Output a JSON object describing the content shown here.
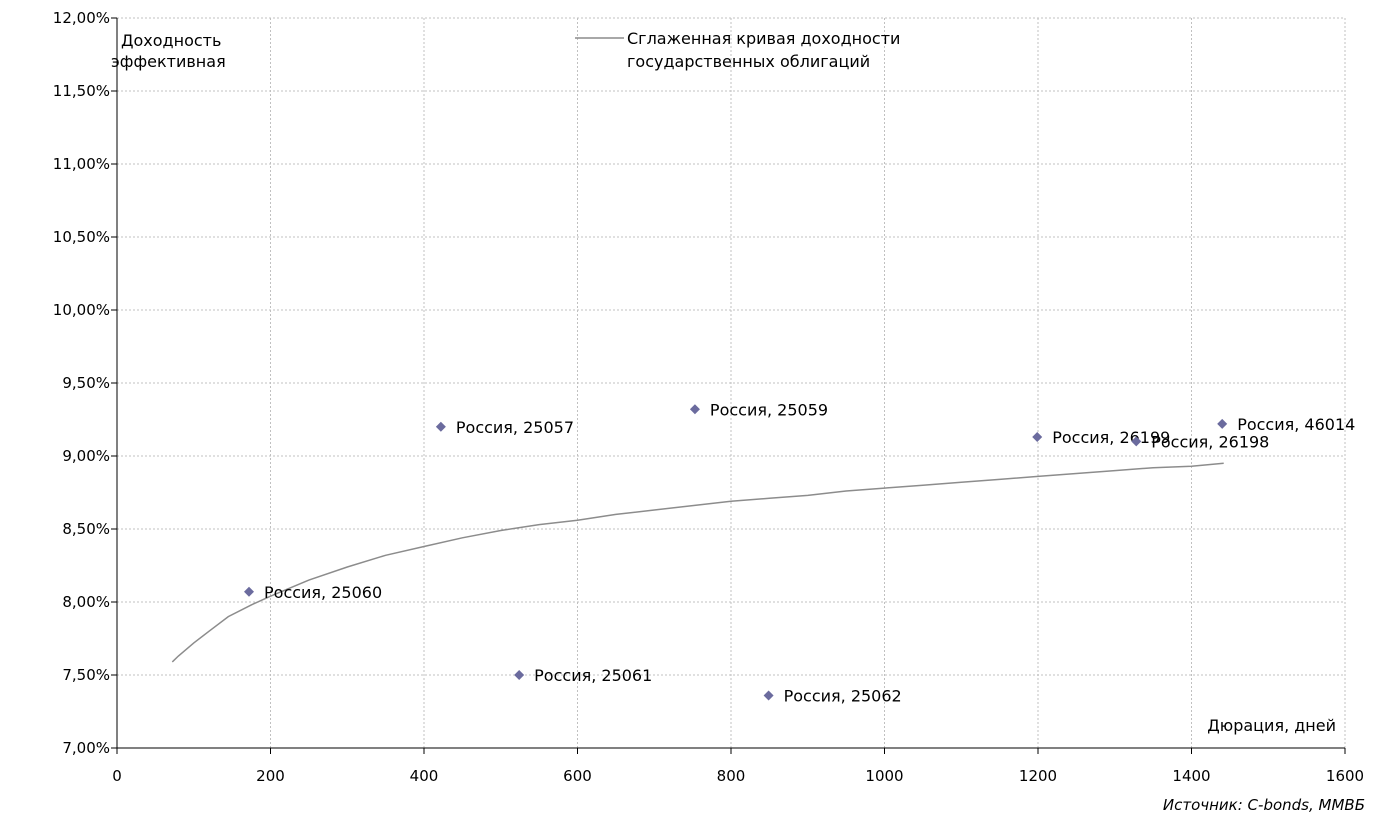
{
  "chart_data": {
    "type": "scatter",
    "ylabel_lines": [
      "Доходность",
      "эффективная"
    ],
    "xlabel": "Дюрация, дней",
    "source": "Источник: C-bonds, ММВБ",
    "xlim": [
      0,
      1600
    ],
    "ylim": [
      7.0,
      12.0
    ],
    "x_ticks": [
      0,
      200,
      400,
      600,
      800,
      1000,
      1200,
      1400,
      1600
    ],
    "x_tick_labels": [
      "0",
      "200",
      "400",
      "600",
      "800",
      "1000",
      "1200",
      "1400",
      "1600"
    ],
    "y_ticks": [
      7.0,
      7.5,
      8.0,
      8.5,
      9.0,
      9.5,
      10.0,
      10.5,
      11.0,
      11.5,
      12.0
    ],
    "y_tick_labels": [
      "7,00%",
      "7,50%",
      "8,00%",
      "8,50%",
      "9,00%",
      "9,50%",
      "10,00%",
      "10,50%",
      "11,00%",
      "11,50%",
      "12,00%"
    ],
    "grid": true,
    "legend": {
      "placement": "top-center",
      "entries": [
        "Сглаженная кривая доходности",
        "государственных облигаций"
      ]
    },
    "colors": {
      "points": "#6b6b9e",
      "curve": "#8c8c8c",
      "grid": "#c0c0c0"
    },
    "points": [
      {
        "label": "Россия, 25060",
        "x": 172,
        "y": 8.07
      },
      {
        "label": "Россия, 25057",
        "x": 422,
        "y": 9.2
      },
      {
        "label": "Россия, 25061",
        "x": 524,
        "y": 7.5
      },
      {
        "label": "Россия, 25059",
        "x": 753,
        "y": 9.32
      },
      {
        "label": "Россия, 25062",
        "x": 849,
        "y": 7.36
      },
      {
        "label": "Россия, 26199",
        "x": 1199,
        "y": 9.13
      },
      {
        "label": "Россия, 26198",
        "x": 1328,
        "y": 9.1
      },
      {
        "label": "Россия, 46014",
        "x": 1440,
        "y": 9.22
      }
    ],
    "curve": {
      "x": [
        72,
        80,
        100,
        120,
        145,
        175,
        200,
        250,
        300,
        350,
        400,
        450,
        500,
        550,
        600,
        650,
        700,
        750,
        800,
        850,
        900,
        950,
        1000,
        1050,
        1100,
        1150,
        1200,
        1250,
        1300,
        1350,
        1400,
        1442
      ],
      "y": [
        7.59,
        7.63,
        7.72,
        7.8,
        7.9,
        7.98,
        8.04,
        8.15,
        8.24,
        8.32,
        8.38,
        8.44,
        8.49,
        8.53,
        8.56,
        8.6,
        8.63,
        8.66,
        8.69,
        8.71,
        8.73,
        8.76,
        8.78,
        8.8,
        8.82,
        8.84,
        8.86,
        8.88,
        8.9,
        8.92,
        8.93,
        8.95
      ]
    }
  }
}
